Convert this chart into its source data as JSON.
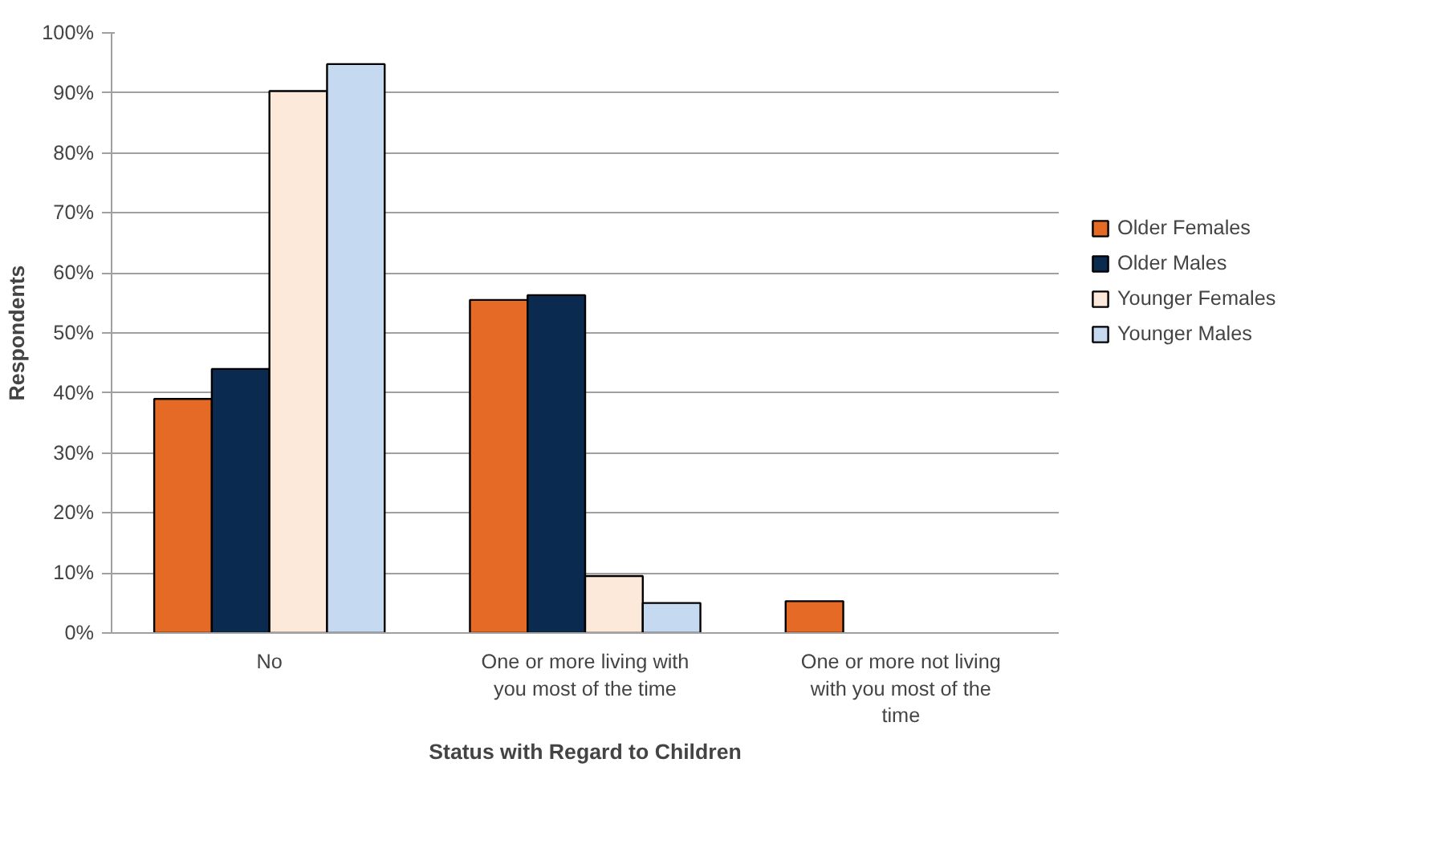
{
  "chart_data": {
    "type": "bar",
    "xlabel": "Status with Regard to Children",
    "ylabel": "Respondents",
    "categories": [
      "No",
      "One or more living with you most of the time",
      "One or more not living with you most of the time"
    ],
    "series": [
      {
        "name": "Older Females",
        "color": "#e46a25",
        "values": [
          39,
          55.5,
          5.3
        ]
      },
      {
        "name": "Older Males",
        "color": "#0b2a4f",
        "values": [
          44,
          56.3,
          null
        ]
      },
      {
        "name": "Younger Females",
        "color": "#fde9d9",
        "values": [
          90.3,
          9.5,
          null
        ]
      },
      {
        "name": "Younger Males",
        "color": "#c5d9f1",
        "values": [
          94.8,
          5,
          null
        ]
      }
    ],
    "ylim": [
      0,
      100
    ],
    "yticks": [
      {
        "value": 0,
        "label": "0%"
      },
      {
        "value": 10,
        "label": "10%"
      },
      {
        "value": 20,
        "label": "20%"
      },
      {
        "value": 30,
        "label": "30%"
      },
      {
        "value": 40,
        "label": "40%"
      },
      {
        "value": 50,
        "label": "50%"
      },
      {
        "value": 60,
        "label": "60%"
      },
      {
        "value": 70,
        "label": "70%"
      },
      {
        "value": 80,
        "label": "80%"
      },
      {
        "value": 90,
        "label": "90%"
      },
      {
        "value": 100,
        "label": "100%"
      }
    ],
    "grid": "y",
    "legend": "right"
  }
}
